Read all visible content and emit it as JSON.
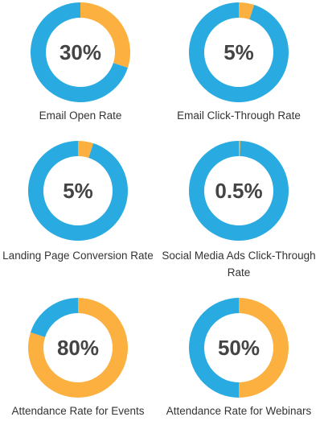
{
  "colors": {
    "blue": "#29ABE2",
    "orange": "#FBB040",
    "text": "#333333",
    "percent_text": "#444444"
  },
  "chart_data": [
    {
      "type": "pie",
      "title": "Email Open Rate",
      "value_label": "30%",
      "slices": [
        {
          "value": 30,
          "color": "#FBB040"
        },
        {
          "value": 70,
          "color": "#29ABE2"
        }
      ]
    },
    {
      "type": "pie",
      "title": "Email Click-Through Rate",
      "value_label": "5%",
      "slices": [
        {
          "value": 5,
          "color": "#FBB040"
        },
        {
          "value": 95,
          "color": "#29ABE2"
        }
      ]
    },
    {
      "type": "pie",
      "title": "Landing Page Conversion Rate",
      "value_label": "5%",
      "slices": [
        {
          "value": 5,
          "color": "#FBB040"
        },
        {
          "value": 95,
          "color": "#29ABE2"
        }
      ]
    },
    {
      "type": "pie",
      "title": "Social Media Ads Click-Through Rate",
      "value_label": "0.5%",
      "slices": [
        {
          "value": 0.5,
          "color": "#FBB040"
        },
        {
          "value": 99.5,
          "color": "#29ABE2"
        }
      ]
    },
    {
      "type": "pie",
      "title": "Attendance Rate for Events",
      "value_label": "80%",
      "slices": [
        {
          "value": 80,
          "color": "#FBB040"
        },
        {
          "value": 20,
          "color": "#29ABE2"
        }
      ]
    },
    {
      "type": "pie",
      "title": "Attendance Rate for Webinars",
      "value_label": "50%",
      "slices": [
        {
          "value": 50,
          "color": "#FBB040"
        },
        {
          "value": 50,
          "color": "#29ABE2"
        }
      ]
    }
  ]
}
